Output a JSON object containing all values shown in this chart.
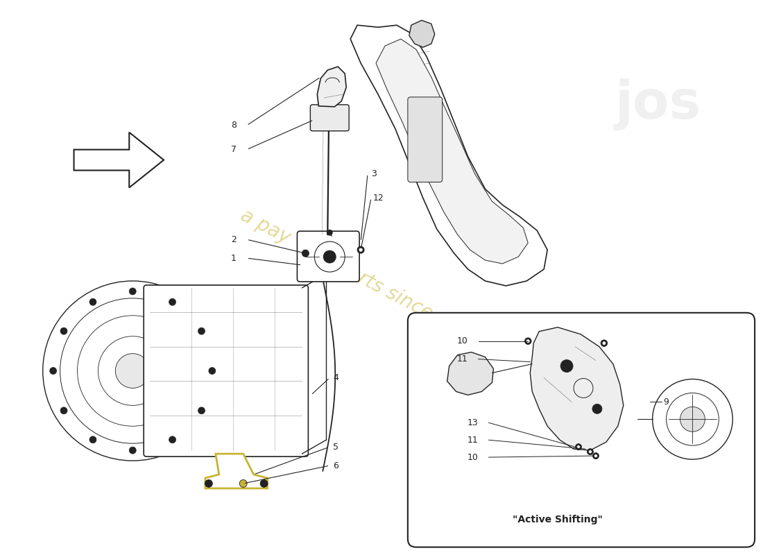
{
  "bg_color": "#ffffff",
  "line_color": "#222222",
  "watermark_yellow": "#c8b432",
  "active_shifting": "\"Active Shifting\"",
  "figsize": [
    11.0,
    8.0
  ],
  "dpi": 100
}
